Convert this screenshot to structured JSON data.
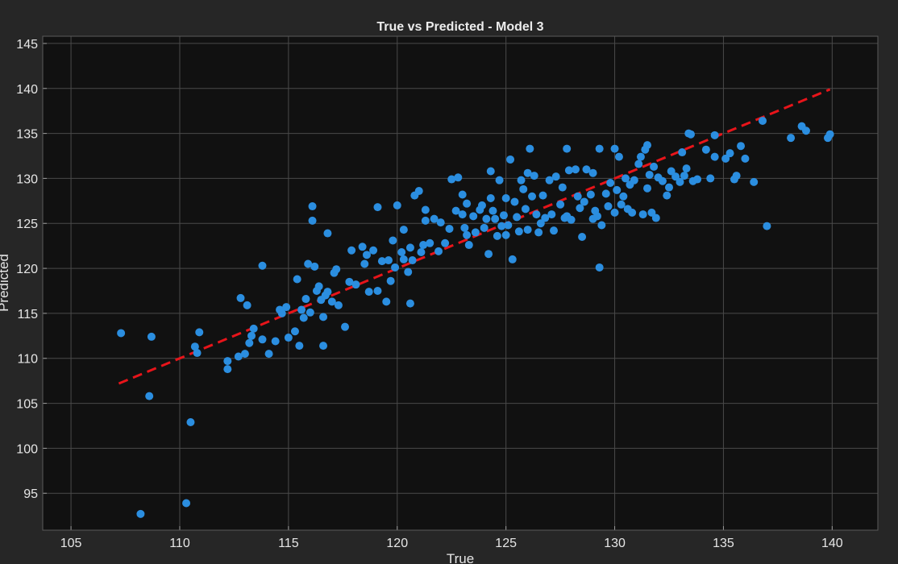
{
  "chart_data": {
    "type": "scatter",
    "title": "True vs Predicted - Model 3",
    "xlabel": "True",
    "ylabel": "Predicted",
    "xlim": [
      103.7,
      142.1
    ],
    "ylim": [
      90.9,
      145.8
    ],
    "xticks": [
      105,
      110,
      115,
      120,
      125,
      130,
      135,
      140
    ],
    "yticks": [
      95,
      100,
      105,
      110,
      115,
      120,
      125,
      130,
      135,
      140,
      145
    ],
    "grid": true,
    "colors": {
      "background": "#262626",
      "axes": "#111111",
      "grid": "#4a4a4a",
      "points": "#2b8ee0",
      "reference_line": "#e8141a",
      "text": "#e6e6e6"
    },
    "reference_line": {
      "style": "dashed",
      "x": [
        107.2,
        139.9
      ],
      "y": [
        107.2,
        139.9
      ]
    },
    "series": [
      {
        "points": [
          [
            107.3,
            112.8
          ],
          [
            108.2,
            92.7
          ],
          [
            108.6,
            105.8
          ],
          [
            108.7,
            112.4
          ],
          [
            110.3,
            93.9
          ],
          [
            110.5,
            102.9
          ],
          [
            110.7,
            111.3
          ],
          [
            110.8,
            110.6
          ],
          [
            110.9,
            112.9
          ],
          [
            112.2,
            108.8
          ],
          [
            112.2,
            109.7
          ],
          [
            112.7,
            110.2
          ],
          [
            112.8,
            116.7
          ],
          [
            113.0,
            110.5
          ],
          [
            113.1,
            115.9
          ],
          [
            113.2,
            111.7
          ],
          [
            113.3,
            112.5
          ],
          [
            113.4,
            113.3
          ],
          [
            113.8,
            120.3
          ],
          [
            113.8,
            112.1
          ],
          [
            114.1,
            110.5
          ],
          [
            114.4,
            111.9
          ],
          [
            114.6,
            115.4
          ],
          [
            114.7,
            115.0
          ],
          [
            114.9,
            115.7
          ],
          [
            115.0,
            112.3
          ],
          [
            115.3,
            113.0
          ],
          [
            115.4,
            118.8
          ],
          [
            115.5,
            111.4
          ],
          [
            115.6,
            115.4
          ],
          [
            115.7,
            114.5
          ],
          [
            115.8,
            116.6
          ],
          [
            115.9,
            120.5
          ],
          [
            116.0,
            115.1
          ],
          [
            116.1,
            126.9
          ],
          [
            116.1,
            125.3
          ],
          [
            116.2,
            120.2
          ],
          [
            116.3,
            117.5
          ],
          [
            116.4,
            118.0
          ],
          [
            116.5,
            116.5
          ],
          [
            116.6,
            111.4
          ],
          [
            116.6,
            114.6
          ],
          [
            116.7,
            117.0
          ],
          [
            116.8,
            123.9
          ],
          [
            116.8,
            117.4
          ],
          [
            117.0,
            116.3
          ],
          [
            117.1,
            119.5
          ],
          [
            117.2,
            119.9
          ],
          [
            117.3,
            115.9
          ],
          [
            117.6,
            113.5
          ],
          [
            117.8,
            118.5
          ],
          [
            117.9,
            122.0
          ],
          [
            118.1,
            118.2
          ],
          [
            118.4,
            122.4
          ],
          [
            118.5,
            120.5
          ],
          [
            118.6,
            121.5
          ],
          [
            118.7,
            117.4
          ],
          [
            118.9,
            122.0
          ],
          [
            119.1,
            126.8
          ],
          [
            119.1,
            117.5
          ],
          [
            119.3,
            120.8
          ],
          [
            119.5,
            116.3
          ],
          [
            119.6,
            120.9
          ],
          [
            119.7,
            118.6
          ],
          [
            119.8,
            123.1
          ],
          [
            119.9,
            120.1
          ],
          [
            120.0,
            127.0
          ],
          [
            120.2,
            121.8
          ],
          [
            120.3,
            121.0
          ],
          [
            120.3,
            124.3
          ],
          [
            120.5,
            119.6
          ],
          [
            120.6,
            122.3
          ],
          [
            120.6,
            116.1
          ],
          [
            120.7,
            120.9
          ],
          [
            120.8,
            128.1
          ],
          [
            121.0,
            128.6
          ],
          [
            121.1,
            121.8
          ],
          [
            121.2,
            122.6
          ],
          [
            121.3,
            126.5
          ],
          [
            121.3,
            125.3
          ],
          [
            121.5,
            122.8
          ],
          [
            121.7,
            125.5
          ],
          [
            121.9,
            121.9
          ],
          [
            122.0,
            125.1
          ],
          [
            122.2,
            122.8
          ],
          [
            122.4,
            124.4
          ],
          [
            122.5,
            129.9
          ],
          [
            122.7,
            126.4
          ],
          [
            122.8,
            130.1
          ],
          [
            123.0,
            128.2
          ],
          [
            123.0,
            126.0
          ],
          [
            123.1,
            124.5
          ],
          [
            123.2,
            127.2
          ],
          [
            123.2,
            123.7
          ],
          [
            123.3,
            122.6
          ],
          [
            123.5,
            125.8
          ],
          [
            123.6,
            124.0
          ],
          [
            123.8,
            126.5
          ],
          [
            123.9,
            127.0
          ],
          [
            124.0,
            124.5
          ],
          [
            124.1,
            125.5
          ],
          [
            124.2,
            121.6
          ],
          [
            124.3,
            130.8
          ],
          [
            124.3,
            127.8
          ],
          [
            124.4,
            126.4
          ],
          [
            124.5,
            125.5
          ],
          [
            124.6,
            123.6
          ],
          [
            124.7,
            129.8
          ],
          [
            124.8,
            124.7
          ],
          [
            124.9,
            125.9
          ],
          [
            125.0,
            127.8
          ],
          [
            125.0,
            123.7
          ],
          [
            125.1,
            124.8
          ],
          [
            125.2,
            132.1
          ],
          [
            125.3,
            121.0
          ],
          [
            125.4,
            127.4
          ],
          [
            125.5,
            125.7
          ],
          [
            125.6,
            124.1
          ],
          [
            125.7,
            129.8
          ],
          [
            125.8,
            128.8
          ],
          [
            125.9,
            126.6
          ],
          [
            126.0,
            130.6
          ],
          [
            126.0,
            124.3
          ],
          [
            126.1,
            133.3
          ],
          [
            126.2,
            128.0
          ],
          [
            126.3,
            130.3
          ],
          [
            126.4,
            126.0
          ],
          [
            126.5,
            124.0
          ],
          [
            126.6,
            125.0
          ],
          [
            126.7,
            128.1
          ],
          [
            126.8,
            125.6
          ],
          [
            127.0,
            129.8
          ],
          [
            127.1,
            126.0
          ],
          [
            127.2,
            124.2
          ],
          [
            127.3,
            130.2
          ],
          [
            127.5,
            127.1
          ],
          [
            127.6,
            129.0
          ],
          [
            127.7,
            125.6
          ],
          [
            127.8,
            133.3
          ],
          [
            127.8,
            125.8
          ],
          [
            127.9,
            130.9
          ],
          [
            128.0,
            125.4
          ],
          [
            128.2,
            131.0
          ],
          [
            128.3,
            128.0
          ],
          [
            128.4,
            126.7
          ],
          [
            128.5,
            123.5
          ],
          [
            128.6,
            127.4
          ],
          [
            128.7,
            131.0
          ],
          [
            128.9,
            128.2
          ],
          [
            129.0,
            125.5
          ],
          [
            129.0,
            130.6
          ],
          [
            129.1,
            126.4
          ],
          [
            129.2,
            125.8
          ],
          [
            129.3,
            133.3
          ],
          [
            129.3,
            120.1
          ],
          [
            129.4,
            124.8
          ],
          [
            129.6,
            128.3
          ],
          [
            129.7,
            126.9
          ],
          [
            129.8,
            129.5
          ],
          [
            130.0,
            133.3
          ],
          [
            130.0,
            126.2
          ],
          [
            130.1,
            128.7
          ],
          [
            130.2,
            132.4
          ],
          [
            130.3,
            127.1
          ],
          [
            130.4,
            128.0
          ],
          [
            130.5,
            130.0
          ],
          [
            130.6,
            126.6
          ],
          [
            130.7,
            129.3
          ],
          [
            130.8,
            126.2
          ],
          [
            130.9,
            129.8
          ],
          [
            131.1,
            131.6
          ],
          [
            131.2,
            132.4
          ],
          [
            131.3,
            126.0
          ],
          [
            131.4,
            133.2
          ],
          [
            131.5,
            133.7
          ],
          [
            131.5,
            128.9
          ],
          [
            131.6,
            130.4
          ],
          [
            131.7,
            126.2
          ],
          [
            131.8,
            131.3
          ],
          [
            131.9,
            125.6
          ],
          [
            132.0,
            130.1
          ],
          [
            132.2,
            129.7
          ],
          [
            132.4,
            128.1
          ],
          [
            132.5,
            129.0
          ],
          [
            132.6,
            130.8
          ],
          [
            132.8,
            130.2
          ],
          [
            133.0,
            129.6
          ],
          [
            133.1,
            132.9
          ],
          [
            133.2,
            130.3
          ],
          [
            133.3,
            131.1
          ],
          [
            133.4,
            135.0
          ],
          [
            133.5,
            134.9
          ],
          [
            133.6,
            129.7
          ],
          [
            133.8,
            129.9
          ],
          [
            134.2,
            133.2
          ],
          [
            134.4,
            130.0
          ],
          [
            134.6,
            132.4
          ],
          [
            134.6,
            134.8
          ],
          [
            135.1,
            132.2
          ],
          [
            135.3,
            132.8
          ],
          [
            135.5,
            129.9
          ],
          [
            135.6,
            130.3
          ],
          [
            135.8,
            133.6
          ],
          [
            136.0,
            132.2
          ],
          [
            136.4,
            129.6
          ],
          [
            136.8,
            136.4
          ],
          [
            137.0,
            124.7
          ],
          [
            138.1,
            134.5
          ],
          [
            138.6,
            135.8
          ],
          [
            138.8,
            135.3
          ],
          [
            139.8,
            134.5
          ],
          [
            139.9,
            134.9
          ]
        ]
      }
    ]
  }
}
